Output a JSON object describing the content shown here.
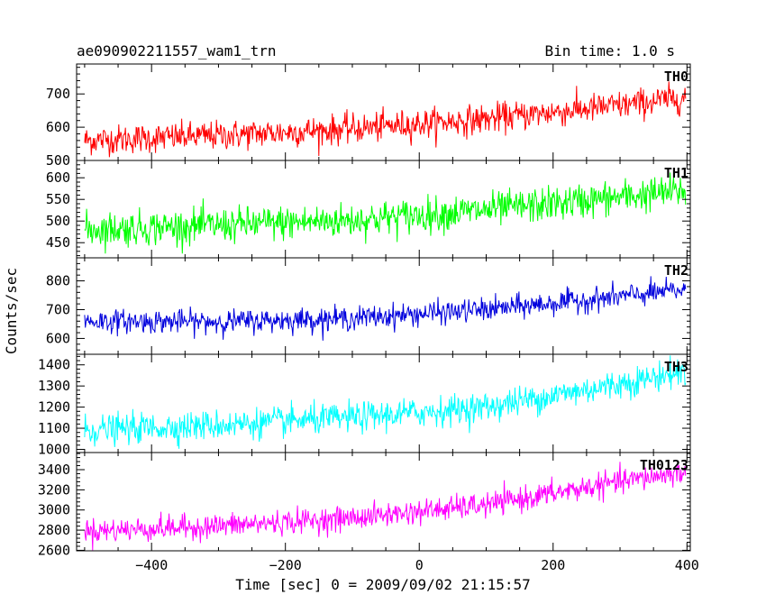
{
  "header": {
    "title": "ae090902211557_wam1_trn",
    "bin_time": "Bin time: 1.0 s"
  },
  "chart_data": {
    "type": "line",
    "xlabel": "Time [sec] 0 = 2009/09/02 21:15:57",
    "ylabel": "Counts/sec",
    "xlim": [
      -512,
      405
    ],
    "x_ticks": [
      -400,
      -200,
      0,
      200,
      400
    ],
    "x_tick_labels": [
      "−400",
      "−200",
      "0",
      "200",
      "400"
    ],
    "x_range": [
      -500,
      398
    ],
    "panels": [
      {
        "label": "TH0",
        "color": "#ff0000",
        "ylim": [
          500,
          790
        ],
        "yticks": [
          500,
          600,
          700
        ],
        "ytick_labels": [
          "500",
          "600",
          "700"
        ],
        "trend": {
          "x": [
            -500,
            -300,
            -100,
            100,
            300,
            398
          ],
          "y": [
            560,
            575,
            595,
            625,
            665,
            690
          ]
        },
        "noise_sd": 22,
        "ymin": 510,
        "ymax": 760
      },
      {
        "label": "TH1",
        "color": "#00ff00",
        "ylim": [
          415,
          640
        ],
        "yticks": [
          450,
          500,
          550,
          600
        ],
        "ytick_labels": [
          "450",
          "500",
          "550",
          "600"
        ],
        "trend": {
          "x": [
            -500,
            -300,
            -100,
            100,
            300,
            398
          ],
          "y": [
            480,
            490,
            502,
            525,
            555,
            570
          ]
        },
        "noise_sd": 20,
        "ymin": 425,
        "ymax": 630
      },
      {
        "label": "TH2",
        "color": "#0000dd",
        "ylim": [
          545,
          880
        ],
        "yticks": [
          600,
          700,
          800
        ],
        "ytick_labels": [
          "600",
          "700",
          "800"
        ],
        "trend": {
          "x": [
            -500,
            -300,
            -100,
            100,
            300,
            398
          ],
          "y": [
            660,
            658,
            670,
            700,
            745,
            770
          ]
        },
        "noise_sd": 20,
        "ymin": 590,
        "ymax": 870
      },
      {
        "label": "TH3",
        "color": "#00ffff",
        "ylim": [
          985,
          1450
        ],
        "yticks": [
          1000,
          1100,
          1200,
          1300,
          1400
        ],
        "ytick_labels": [
          "1000",
          "1100",
          "1200",
          "1300",
          "1400"
        ],
        "trend": {
          "x": [
            -500,
            -300,
            -100,
            100,
            300,
            398
          ],
          "y": [
            1090,
            1115,
            1150,
            1200,
            1310,
            1370
          ]
        },
        "noise_sd": 35,
        "ymin": 1000,
        "ymax": 1445
      },
      {
        "label": "TH0123",
        "color": "#ff00ff",
        "ylim": [
          2595,
          3570
        ],
        "yticks": [
          2600,
          2800,
          3000,
          3200,
          3400
        ],
        "ytick_labels": [
          "2600",
          "2800",
          "3000",
          "3200",
          "3400"
        ],
        "trend": {
          "x": [
            -500,
            -300,
            -100,
            100,
            300,
            398
          ],
          "y": [
            2790,
            2840,
            2920,
            3050,
            3280,
            3380
          ]
        },
        "noise_sd": 60,
        "ymin": 2600,
        "ymax": 3530
      }
    ]
  }
}
